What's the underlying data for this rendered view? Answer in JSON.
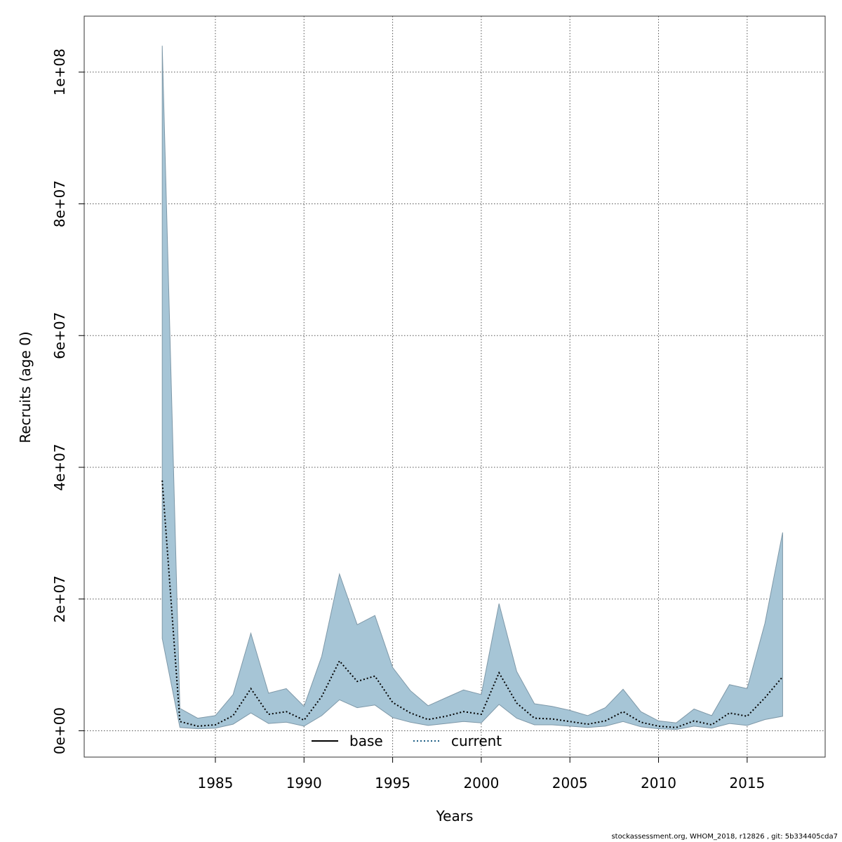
{
  "chart_data": {
    "type": "line",
    "xlabel": "Years",
    "ylabel": "Recruits (age 0)",
    "xlim": [
      1977.6,
      2019.4
    ],
    "ylim": [
      -4000000,
      108500000
    ],
    "x_ticks": [
      1985,
      1990,
      1995,
      2000,
      2005,
      2010,
      2015
    ],
    "x_tick_labels": [
      "1985",
      "1990",
      "1995",
      "2000",
      "2005",
      "2010",
      "2015"
    ],
    "y_ticks": [
      0,
      20000000,
      40000000,
      60000000,
      80000000,
      100000000
    ],
    "y_tick_labels": [
      "0e+00",
      "2e+07",
      "4e+07",
      "6e+07",
      "8e+07",
      "1e+08"
    ],
    "grid": true,
    "legend_position": "bottom-center",
    "colors": {
      "band_fill": "#a6c5d6",
      "band_edge": "#7e98a8",
      "base_line": "#000000",
      "current_line": "#000000",
      "current_legend_line": "#1f5f86",
      "grid": "#555555",
      "frame": "#333333"
    },
    "x": [
      1982,
      1983,
      1984,
      1985,
      1986,
      1987,
      1988,
      1989,
      1990,
      1991,
      1992,
      1993,
      1994,
      1995,
      1996,
      1997,
      1998,
      1999,
      2000,
      2001,
      2002,
      2003,
      2004,
      2005,
      2006,
      2007,
      2008,
      2009,
      2010,
      2011,
      2012,
      2013,
      2014,
      2015,
      2016,
      2017
    ],
    "series": [
      {
        "name": "current",
        "style": "dotted",
        "values": [
          38000000,
          1400000,
          700000,
          900000,
          2300000,
          6400000,
          2500000,
          2900000,
          1600000,
          5200000,
          10600000,
          7500000,
          8300000,
          4300000,
          2700000,
          1700000,
          2200000,
          2900000,
          2500000,
          8800000,
          4200000,
          1900000,
          1800000,
          1400000,
          1000000,
          1500000,
          2900000,
          1300000,
          700000,
          500000,
          1500000,
          900000,
          2700000,
          2200000,
          5000000,
          8200000
        ]
      },
      {
        "name": "base",
        "style": "solid",
        "values": [
          38000000,
          1400000,
          700000,
          900000,
          2300000,
          6400000,
          2500000,
          2900000,
          1600000,
          5200000,
          10600000,
          7500000,
          8300000,
          4300000,
          2700000,
          1700000,
          2200000,
          2900000,
          2500000,
          8800000,
          4200000,
          1900000,
          1800000,
          1400000,
          1000000,
          1500000,
          2900000,
          1300000,
          700000,
          500000,
          1500000,
          900000,
          2700000,
          2200000,
          5000000,
          8200000
        ]
      }
    ],
    "band": {
      "lower": [
        14000000,
        500000,
        300000,
        400000,
        1000000,
        2700000,
        1100000,
        1300000,
        700000,
        2300000,
        4700000,
        3500000,
        3900000,
        2000000,
        1300000,
        800000,
        1100000,
        1400000,
        1200000,
        4000000,
        1900000,
        900000,
        900000,
        700000,
        500000,
        700000,
        1400000,
        600000,
        300000,
        200000,
        700000,
        400000,
        1100000,
        800000,
        1700000,
        2200000
      ],
      "upper": [
        104000000,
        3400000,
        1900000,
        2300000,
        5500000,
        14800000,
        5700000,
        6400000,
        3700000,
        11300000,
        23800000,
        16100000,
        17500000,
        9600000,
        6100000,
        3800000,
        5000000,
        6200000,
        5500000,
        19300000,
        9000000,
        4100000,
        3700000,
        3100000,
        2300000,
        3500000,
        6300000,
        2900000,
        1500000,
        1200000,
        3300000,
        2300000,
        7000000,
        6400000,
        16300000,
        30100000
      ]
    },
    "legend": [
      "base",
      "current"
    ]
  },
  "footer": "stockassessment.org, WHOM_2018, r12826 , git: 5b334405cda7"
}
